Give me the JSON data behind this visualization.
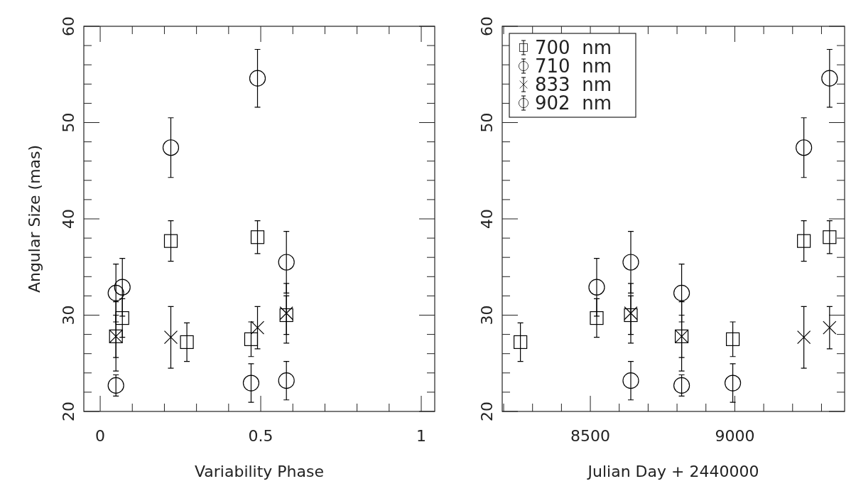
{
  "chart_data": [
    {
      "type": "scatter",
      "xlabel": "Variability Phase",
      "ylabel": "Angular Size (mas)",
      "xlim": [
        -0.051,
        1.042
      ],
      "xticks": [
        0,
        0.5,
        1
      ],
      "ylim": [
        20,
        60
      ],
      "yticks": [
        20,
        30,
        40,
        50,
        60
      ],
      "legend": false,
      "grid": false,
      "series": [
        {
          "color": "#000000",
          "marker": "square",
          "x": [
            0.049,
            0.069,
            0.22,
            0.27,
            0.47,
            0.49,
            0.58
          ],
          "values": [
            27.8,
            29.7,
            37.7,
            27.2,
            27.5,
            38.1,
            30.0
          ],
          "errors": [
            2.2,
            2.0,
            2.1,
            2.0,
            1.8,
            1.7,
            2.0
          ]
        },
        {
          "color": "#000000",
          "marker": "circle",
          "x": [
            0.049,
            0.069,
            0.22,
            0.49,
            0.58
          ],
          "values": [
            32.3,
            32.9,
            47.4,
            54.6,
            35.5
          ],
          "errors": [
            3.0,
            3.0,
            3.1,
            3.0,
            3.2
          ]
        },
        {
          "color": "#000000",
          "marker": "cross",
          "x": [
            0.049,
            0.22,
            0.49,
            0.58
          ],
          "values": [
            27.8,
            27.7,
            28.7,
            30.2
          ],
          "errors": [
            3.6,
            3.2,
            2.2,
            3.1
          ]
        },
        {
          "color": "#000000",
          "marker": "circle",
          "x": [
            0.049,
            0.47,
            0.58
          ],
          "values": [
            22.7,
            22.95,
            23.2
          ],
          "errors": [
            1.1,
            2.0,
            2.0
          ]
        }
      ]
    },
    {
      "type": "scatter",
      "xlabel": "Julian Day + 2440000",
      "xlim": [
        8195,
        9380
      ],
      "xticks": [
        8500,
        9000
      ],
      "ylim": [
        20,
        60
      ],
      "yticks": [
        20,
        30,
        40,
        50,
        60
      ],
      "legend": "top left",
      "grid": false,
      "series": [
        {
          "name": "700  nm",
          "color": "#000000",
          "marker": "square",
          "x": [
            8816,
            8522,
            9239,
            8258,
            8993,
            9328,
            8640
          ],
          "values": [
            27.8,
            29.7,
            37.7,
            27.2,
            27.5,
            38.1,
            30.0
          ],
          "errors": [
            2.2,
            2.0,
            2.1,
            2.0,
            1.8,
            1.7,
            2.0
          ]
        },
        {
          "name": "710  nm",
          "color": "#000000",
          "marker": "circle",
          "x": [
            8816,
            8522,
            9239,
            9328,
            8640
          ],
          "values": [
            32.3,
            32.9,
            47.4,
            54.6,
            35.5
          ],
          "errors": [
            3.0,
            3.0,
            3.1,
            3.0,
            3.2
          ]
        },
        {
          "name": "833  nm",
          "color": "#000000",
          "marker": "cross",
          "x": [
            8816,
            9239,
            9328,
            8640
          ],
          "values": [
            27.8,
            27.7,
            28.7,
            30.2
          ],
          "errors": [
            3.6,
            3.2,
            2.2,
            3.1
          ]
        },
        {
          "name": "902  nm",
          "color": "#000000",
          "marker": "circle",
          "x": [
            8816,
            8993,
            8640
          ],
          "values": [
            22.7,
            22.95,
            23.2
          ],
          "errors": [
            1.1,
            2.0,
            2.0
          ]
        }
      ]
    }
  ]
}
